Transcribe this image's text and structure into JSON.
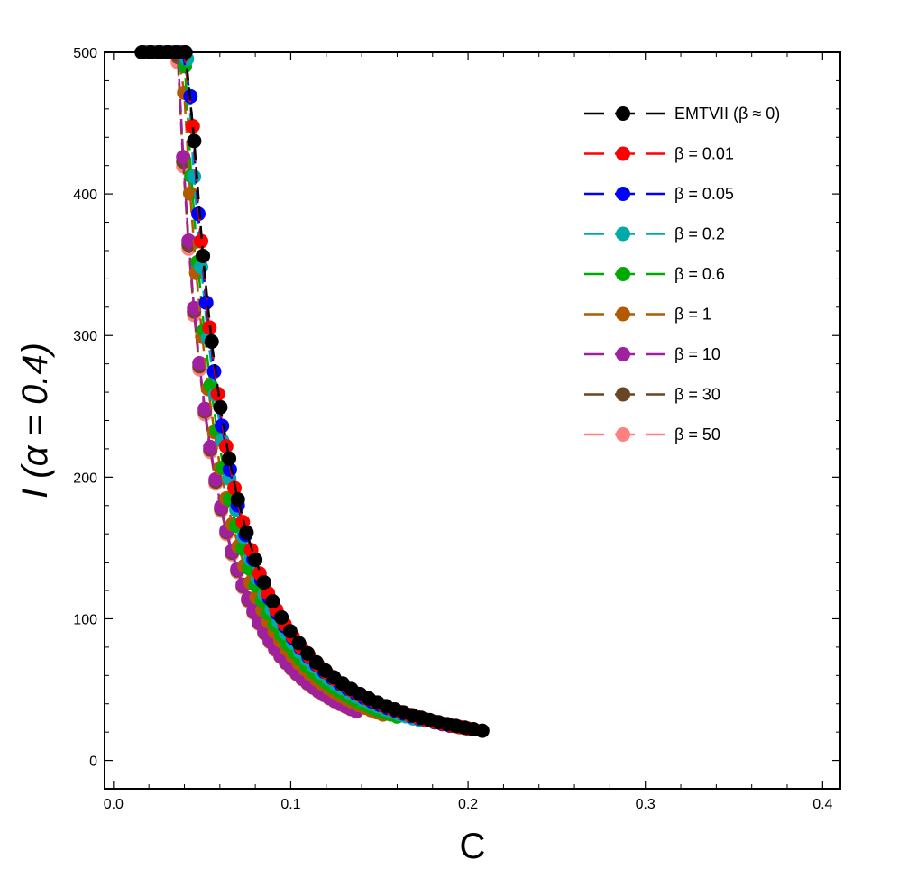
{
  "chart_data": {
    "type": "scatter",
    "xlabel": "C",
    "ylabel": "I (α = 0.4)",
    "xlim": [
      -0.005,
      0.41
    ],
    "ylim": [
      -20,
      500
    ],
    "x_ticks": [
      0.0,
      0.1,
      0.2,
      0.3,
      0.4
    ],
    "x_tick_labels": [
      "0.0",
      "0.1",
      "0.2",
      "0.3",
      "0.4"
    ],
    "y_ticks": [
      0,
      100,
      200,
      300,
      400,
      500
    ],
    "y_tick_labels": [
      "0",
      "100",
      "200",
      "300",
      "400",
      "500"
    ],
    "legend_position": "top-right",
    "grid": false,
    "style": "markers joined by dashed lines",
    "series": [
      {
        "name": "EMTVII (β ≈ 0)",
        "color": "#000000",
        "k": 9.07,
        "c_start": 0.016,
        "c_end": 0.208,
        "points": 40
      },
      {
        "name": "β = 0.01",
        "color": "#ff0000",
        "k": 8.96,
        "c_start": 0.0165,
        "c_end": 0.2,
        "points": 40
      },
      {
        "name": "β = 0.05",
        "color": "#0000ff",
        "k": 8.85,
        "c_start": 0.0168,
        "c_end": 0.19,
        "points": 40
      },
      {
        "name": "β = 0.2",
        "color": "#00aaaa",
        "k": 8.5,
        "c_start": 0.0175,
        "c_end": 0.173,
        "points": 40
      },
      {
        "name": "β = 0.6",
        "color": "#00aa00",
        "k": 7.95,
        "c_start": 0.0185,
        "c_end": 0.16,
        "points": 40
      },
      {
        "name": "β = 1",
        "color": "#b35900",
        "k": 7.5,
        "c_start": 0.0195,
        "c_end": 0.152,
        "points": 40
      },
      {
        "name": "β = 10",
        "color": "#a020a0",
        "k": 6.6,
        "c_start": 0.018,
        "c_end": 0.137,
        "points": 40
      },
      {
        "name": "β = 30",
        "color": "#6b4423",
        "k": 6.55,
        "c_start": 0.018,
        "c_end": 0.137,
        "points": 40
      },
      {
        "name": "β = 50",
        "color": "#ff8080",
        "k": 6.5,
        "c_start": 0.018,
        "c_end": 0.137,
        "points": 40
      }
    ]
  }
}
